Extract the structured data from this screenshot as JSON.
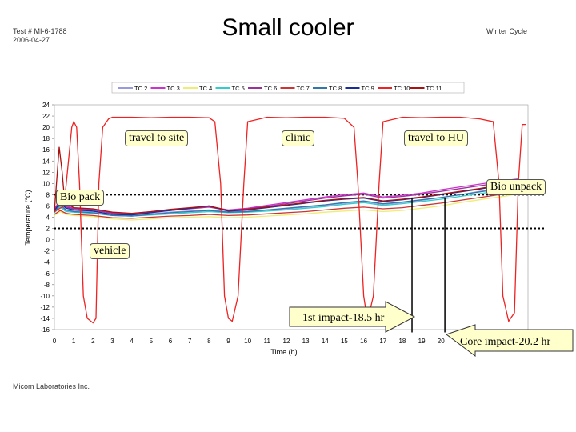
{
  "header": {
    "test_id": "Test # MI-6-1788",
    "date": "2006-04-27",
    "title": "Small cooler",
    "cycle": "Winter Cycle"
  },
  "footer": "Micom Laboratories Inc.",
  "colors": {
    "TC 2": "#9999dd",
    "TC 3": "#cc33cc",
    "TC 4": "#eeee77",
    "TC 5": "#33cccc",
    "TC 6": "#993399",
    "TC 7": "#cc3333",
    "TC 8": "#3377aa",
    "TC 9": "#1a2d99",
    "TC 10": "#ee2222",
    "TC 11": "#aa1111"
  },
  "annotations": {
    "travel_to_site": "travel to site",
    "clinic": "clinic",
    "travel_to_hu": "travel to HU",
    "bio_unpack": "Bio unpack",
    "bio_pack": "Bio pack",
    "vehicle": "vehicle",
    "first_impact": "1st impact-18.5 hr",
    "core_impact": "Core impact-20.2 hr"
  },
  "chart_data": {
    "type": "line",
    "title": "Small cooler",
    "xlabel": "Time (h)",
    "ylabel": "Temperature (°C)",
    "xlim": [
      0,
      24.5
    ],
    "ylim": [
      -16,
      24
    ],
    "x_ticks": [
      0,
      1,
      2,
      3,
      4,
      5,
      6,
      7,
      8,
      9,
      10,
      11,
      12,
      13,
      14,
      15,
      16,
      17,
      18,
      19,
      20,
      21,
      22,
      23,
      24
    ],
    "y_ticks": [
      24,
      22,
      20,
      18,
      16,
      14,
      12,
      10,
      8,
      6,
      4,
      2,
      0,
      -2,
      -4,
      -6,
      -8,
      -10,
      -12,
      -14,
      -16
    ],
    "reference_lines": [
      8,
      2
    ],
    "legend_position": "top",
    "legend": [
      "TC 2",
      "TC 3",
      "TC 4",
      "TC 5",
      "TC 6",
      "TC 7",
      "TC 8",
      "TC 9",
      "TC 10",
      "TC 11"
    ],
    "series": [
      {
        "name": "TC 2",
        "x": [
          0,
          0.3,
          0.6,
          1,
          2,
          3,
          4,
          5,
          6,
          7,
          8,
          9,
          10,
          11,
          12,
          13,
          14,
          15,
          16,
          17,
          18,
          19,
          20,
          21,
          22,
          23,
          24
        ],
        "y": [
          5,
          6,
          5.2,
          5.1,
          5,
          4.5,
          4.4,
          4.6,
          4.9,
          5.1,
          5.3,
          5,
          5.1,
          5.3,
          5.5,
          5.8,
          6.1,
          6.5,
          6.8,
          6.3,
          6.6,
          7,
          7.5,
          8,
          8.6,
          9.1,
          9.5
        ]
      },
      {
        "name": "TC 3",
        "x": [
          0,
          0.3,
          0.6,
          1,
          2,
          3,
          4,
          5,
          6,
          7,
          8,
          9,
          10,
          11,
          12,
          13,
          14,
          15,
          16,
          17,
          18,
          19,
          20,
          21,
          22,
          23,
          24
        ],
        "y": [
          5.5,
          7,
          6,
          5.6,
          5.4,
          4.8,
          4.6,
          5,
          5.3,
          5.6,
          5.9,
          5.3,
          5.6,
          6.1,
          6.6,
          7.1,
          7.6,
          8,
          8.3,
          7.6,
          7.9,
          8.3,
          8.9,
          9.4,
          9.9,
          10.4,
          10.8
        ]
      },
      {
        "name": "TC 4",
        "x": [
          0,
          0.3,
          0.6,
          1,
          2,
          3,
          4,
          5,
          6,
          7,
          8,
          9,
          10,
          11,
          12,
          13,
          14,
          15,
          16,
          17,
          18,
          19,
          20,
          21,
          22,
          23,
          24
        ],
        "y": [
          4.3,
          5,
          4.5,
          4.3,
          4.1,
          3.7,
          3.5,
          3.7,
          3.9,
          4,
          4.1,
          3.9,
          4,
          4.2,
          4.4,
          4.6,
          4.9,
          5.1,
          5.3,
          5,
          5.2,
          5.6,
          6,
          6.6,
          7.1,
          7.6,
          8.1
        ]
      },
      {
        "name": "TC 5",
        "x": [
          0,
          0.3,
          0.6,
          1,
          2,
          3,
          4,
          5,
          6,
          7,
          8,
          9,
          10,
          11,
          12,
          13,
          14,
          15,
          16,
          17,
          18,
          19,
          20,
          21,
          22,
          23,
          24
        ],
        "y": [
          4.8,
          5.8,
          5,
          4.9,
          4.7,
          4.3,
          4.2,
          4.4,
          4.6,
          4.8,
          5,
          4.8,
          4.9,
          5.1,
          5.3,
          5.6,
          5.9,
          6.3,
          6.6,
          6.1,
          6.4,
          6.8,
          7.2,
          7.7,
          8.2,
          8.7,
          9.1
        ]
      },
      {
        "name": "TC 6",
        "x": [
          0,
          0.3,
          0.6,
          1,
          2,
          3,
          4,
          5,
          6,
          7,
          8,
          9,
          10,
          11,
          12,
          13,
          14,
          15,
          16,
          17,
          18,
          19,
          20,
          21,
          22,
          23,
          24
        ],
        "y": [
          5.4,
          6.8,
          5.8,
          5.5,
          5.3,
          4.7,
          4.5,
          4.9,
          5.2,
          5.5,
          5.8,
          5.2,
          5.5,
          5.9,
          6.4,
          6.9,
          7.4,
          7.8,
          8.1,
          7.4,
          7.7,
          8.1,
          8.6,
          9.1,
          9.6,
          10.1,
          10.5
        ]
      },
      {
        "name": "TC 7",
        "x": [
          0,
          0.3,
          0.6,
          1,
          2,
          3,
          4,
          5,
          6,
          7,
          8,
          9,
          10,
          11,
          12,
          13,
          14,
          15,
          16,
          17,
          18,
          19,
          20,
          21,
          22,
          23,
          24
        ],
        "y": [
          4.5,
          5.2,
          4.7,
          4.5,
          4.3,
          3.9,
          3.8,
          4,
          4.2,
          4.3,
          4.5,
          4.3,
          4.4,
          4.6,
          4.8,
          5,
          5.3,
          5.6,
          5.8,
          5.5,
          5.7,
          6.1,
          6.5,
          7,
          7.5,
          8,
          8.4
        ]
      },
      {
        "name": "TC 8",
        "x": [
          0,
          0.3,
          0.6,
          1,
          2,
          3,
          4,
          5,
          6,
          7,
          8,
          9,
          10,
          11,
          12,
          13,
          14,
          15,
          16,
          17,
          18,
          19,
          20,
          21,
          22,
          23,
          24
        ],
        "y": [
          4.9,
          6.2,
          5.3,
          5,
          4.8,
          4.3,
          4.2,
          4.5,
          4.8,
          5,
          5.2,
          4.9,
          5,
          5.3,
          5.6,
          5.9,
          6.2,
          6.6,
          6.9,
          6.4,
          6.7,
          7.1,
          7.5,
          8,
          8.5,
          9,
          9.4
        ]
      },
      {
        "name": "TC 9",
        "x": [
          0,
          0.3,
          0.6,
          1,
          2,
          3,
          4,
          5,
          6,
          7,
          8,
          9,
          10,
          11,
          12,
          13,
          14,
          15,
          16,
          17,
          18,
          19,
          20,
          21,
          22,
          23,
          24
        ],
        "y": [
          5.2,
          6.5,
          5.6,
          5.3,
          5.1,
          4.5,
          4.4,
          4.8,
          5.2,
          5.6,
          6,
          5.1,
          5.3,
          5.7,
          6.1,
          6.5,
          6.9,
          7.2,
          7.4,
          6.8,
          7.1,
          7.5,
          8,
          8.5,
          9,
          9.6,
          10
        ]
      },
      {
        "name": "TC 10",
        "x": [
          0,
          0.5,
          0.9,
          1,
          1.15,
          1.3,
          1.5,
          1.7,
          2,
          2.15,
          2.3,
          2.5,
          2.8,
          3,
          4,
          5,
          6,
          7,
          8,
          8.3,
          8.6,
          8.8,
          9,
          9.2,
          9.5,
          9.8,
          10,
          11,
          12,
          13,
          14,
          15,
          15.5,
          15.7,
          16,
          16.2,
          16.5,
          16.8,
          17,
          18,
          19,
          20,
          21,
          22,
          22.7,
          23,
          23.2,
          23.5,
          23.8,
          24,
          24.2,
          24.4
        ],
        "y": [
          5,
          6,
          20,
          21,
          20,
          10,
          -10,
          -14,
          -14.8,
          -14,
          10,
          20,
          21.5,
          21.8,
          21.8,
          21.7,
          21.8,
          21.8,
          21.7,
          21,
          10,
          -10,
          -14,
          -14.5,
          -10,
          10,
          21,
          21.8,
          21.7,
          21.8,
          21.8,
          21.6,
          20,
          10,
          -10,
          -14.5,
          -10,
          10,
          21,
          21.8,
          21.7,
          21.8,
          21.8,
          21.5,
          21,
          10,
          -10,
          -14.5,
          -13,
          10,
          20.5,
          20.5
        ]
      },
      {
        "name": "TC 11",
        "x": [
          0,
          0.25,
          0.4,
          0.5,
          0.6,
          1,
          2,
          3,
          4,
          5,
          6,
          7,
          8,
          9,
          10,
          11,
          12,
          13,
          14,
          15,
          16,
          17,
          18,
          19,
          20,
          21,
          22,
          23,
          24
        ],
        "y": [
          5,
          16.5,
          12,
          8,
          6.5,
          5.7,
          5.5,
          4.9,
          4.7,
          5,
          5.4,
          5.7,
          6,
          5.2,
          5.4,
          5.8,
          6.2,
          6.6,
          7,
          7.3,
          7.5,
          6.9,
          7.2,
          7.6,
          8.1,
          8.6,
          9.1,
          9.7,
          10.1
        ]
      }
    ]
  }
}
